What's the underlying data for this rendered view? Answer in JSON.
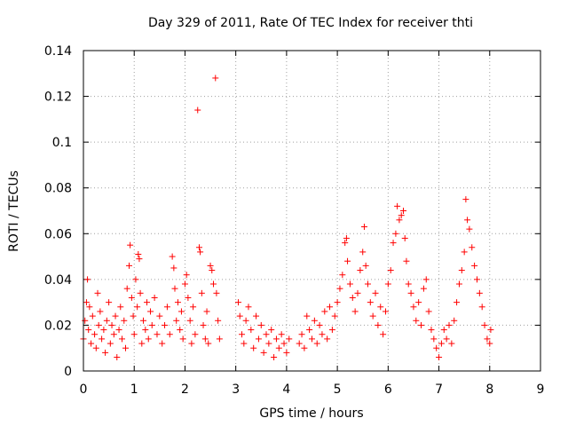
{
  "chart_data": {
    "type": "scatter",
    "title": "Day 329 of 2011, Rate Of TEC Index for receiver thti",
    "xlabel": "GPS time / hours",
    "ylabel": "ROTI / TECUs",
    "xlim": [
      0,
      9
    ],
    "ylim": [
      0,
      0.14
    ],
    "x_ticks": [
      "0",
      "1",
      "2",
      "3",
      "4",
      "5",
      "6",
      "7",
      "8",
      "9"
    ],
    "y_ticks": [
      "0",
      "0.02",
      "0.04",
      "0.06",
      "0.08",
      "0.1",
      "0.12",
      "0.14"
    ],
    "grid": true,
    "marker": "+",
    "point_color": "#ff0000",
    "series": [
      {
        "name": "ROTI",
        "points": [
          [
            0.0,
            0.014
          ],
          [
            0.03,
            0.022
          ],
          [
            0.06,
            0.03
          ],
          [
            0.08,
            0.04
          ],
          [
            0.1,
            0.018
          ],
          [
            0.12,
            0.028
          ],
          [
            0.15,
            0.012
          ],
          [
            0.18,
            0.024
          ],
          [
            0.22,
            0.016
          ],
          [
            0.25,
            0.01
          ],
          [
            0.28,
            0.034
          ],
          [
            0.3,
            0.02
          ],
          [
            0.33,
            0.026
          ],
          [
            0.36,
            0.014
          ],
          [
            0.4,
            0.018
          ],
          [
            0.43,
            0.008
          ],
          [
            0.46,
            0.022
          ],
          [
            0.5,
            0.03
          ],
          [
            0.53,
            0.012
          ],
          [
            0.56,
            0.02
          ],
          [
            0.6,
            0.016
          ],
          [
            0.63,
            0.024
          ],
          [
            0.66,
            0.006
          ],
          [
            0.7,
            0.018
          ],
          [
            0.73,
            0.028
          ],
          [
            0.76,
            0.014
          ],
          [
            0.8,
            0.022
          ],
          [
            0.83,
            0.01
          ],
          [
            0.86,
            0.036
          ],
          [
            0.9,
            0.046
          ],
          [
            0.92,
            0.055
          ],
          [
            0.95,
            0.032
          ],
          [
            0.98,
            0.024
          ],
          [
            1.0,
            0.016
          ],
          [
            1.03,
            0.04
          ],
          [
            1.06,
            0.028
          ],
          [
            1.08,
            0.051
          ],
          [
            1.1,
            0.049
          ],
          [
            1.12,
            0.034
          ],
          [
            1.15,
            0.012
          ],
          [
            1.18,
            0.022
          ],
          [
            1.22,
            0.018
          ],
          [
            1.25,
            0.03
          ],
          [
            1.28,
            0.014
          ],
          [
            1.32,
            0.026
          ],
          [
            1.35,
            0.02
          ],
          [
            1.4,
            0.032
          ],
          [
            1.45,
            0.016
          ],
          [
            1.5,
            0.024
          ],
          [
            1.55,
            0.012
          ],
          [
            1.6,
            0.02
          ],
          [
            1.65,
            0.028
          ],
          [
            1.7,
            0.016
          ],
          [
            1.75,
            0.05
          ],
          [
            1.78,
            0.045
          ],
          [
            1.8,
            0.036
          ],
          [
            1.83,
            0.022
          ],
          [
            1.86,
            0.03
          ],
          [
            1.9,
            0.018
          ],
          [
            1.93,
            0.026
          ],
          [
            1.96,
            0.014
          ],
          [
            2.0,
            0.038
          ],
          [
            2.03,
            0.042
          ],
          [
            2.06,
            0.032
          ],
          [
            2.1,
            0.022
          ],
          [
            2.13,
            0.012
          ],
          [
            2.16,
            0.028
          ],
          [
            2.2,
            0.016
          ],
          [
            2.25,
            0.114
          ],
          [
            2.28,
            0.054
          ],
          [
            2.3,
            0.052
          ],
          [
            2.33,
            0.034
          ],
          [
            2.36,
            0.02
          ],
          [
            2.4,
            0.014
          ],
          [
            2.43,
            0.026
          ],
          [
            2.46,
            0.012
          ],
          [
            2.5,
            0.046
          ],
          [
            2.53,
            0.044
          ],
          [
            2.56,
            0.038
          ],
          [
            2.6,
            0.128
          ],
          [
            2.62,
            0.034
          ],
          [
            2.65,
            0.022
          ],
          [
            2.68,
            0.014
          ],
          [
            3.05,
            0.03
          ],
          [
            3.08,
            0.024
          ],
          [
            3.12,
            0.016
          ],
          [
            3.16,
            0.012
          ],
          [
            3.2,
            0.022
          ],
          [
            3.25,
            0.028
          ],
          [
            3.3,
            0.018
          ],
          [
            3.35,
            0.01
          ],
          [
            3.4,
            0.024
          ],
          [
            3.45,
            0.014
          ],
          [
            3.5,
            0.02
          ],
          [
            3.55,
            0.008
          ],
          [
            3.6,
            0.016
          ],
          [
            3.65,
            0.012
          ],
          [
            3.7,
            0.018
          ],
          [
            3.75,
            0.006
          ],
          [
            3.8,
            0.014
          ],
          [
            3.85,
            0.01
          ],
          [
            3.9,
            0.016
          ],
          [
            3.95,
            0.012
          ],
          [
            4.0,
            0.008
          ],
          [
            4.05,
            0.014
          ],
          [
            4.25,
            0.012
          ],
          [
            4.3,
            0.016
          ],
          [
            4.35,
            0.01
          ],
          [
            4.4,
            0.024
          ],
          [
            4.45,
            0.018
          ],
          [
            4.5,
            0.014
          ],
          [
            4.55,
            0.022
          ],
          [
            4.6,
            0.012
          ],
          [
            4.65,
            0.02
          ],
          [
            4.7,
            0.016
          ],
          [
            4.75,
            0.026
          ],
          [
            4.8,
            0.014
          ],
          [
            4.85,
            0.028
          ],
          [
            4.9,
            0.018
          ],
          [
            4.95,
            0.024
          ],
          [
            5.0,
            0.03
          ],
          [
            5.05,
            0.036
          ],
          [
            5.1,
            0.042
          ],
          [
            5.15,
            0.056
          ],
          [
            5.18,
            0.058
          ],
          [
            5.2,
            0.048
          ],
          [
            5.25,
            0.038
          ],
          [
            5.3,
            0.032
          ],
          [
            5.35,
            0.026
          ],
          [
            5.4,
            0.034
          ],
          [
            5.45,
            0.044
          ],
          [
            5.5,
            0.052
          ],
          [
            5.53,
            0.063
          ],
          [
            5.56,
            0.046
          ],
          [
            5.6,
            0.038
          ],
          [
            5.65,
            0.03
          ],
          [
            5.7,
            0.024
          ],
          [
            5.75,
            0.034
          ],
          [
            5.8,
            0.02
          ],
          [
            5.85,
            0.028
          ],
          [
            5.9,
            0.016
          ],
          [
            5.95,
            0.026
          ],
          [
            6.0,
            0.038
          ],
          [
            6.05,
            0.044
          ],
          [
            6.1,
            0.056
          ],
          [
            6.15,
            0.06
          ],
          [
            6.18,
            0.072
          ],
          [
            6.22,
            0.066
          ],
          [
            6.26,
            0.068
          ],
          [
            6.3,
            0.07
          ],
          [
            6.33,
            0.058
          ],
          [
            6.36,
            0.048
          ],
          [
            6.4,
            0.038
          ],
          [
            6.45,
            0.034
          ],
          [
            6.5,
            0.028
          ],
          [
            6.55,
            0.022
          ],
          [
            6.6,
            0.03
          ],
          [
            6.65,
            0.02
          ],
          [
            6.7,
            0.036
          ],
          [
            6.75,
            0.04
          ],
          [
            6.8,
            0.026
          ],
          [
            6.85,
            0.018
          ],
          [
            6.9,
            0.014
          ],
          [
            6.95,
            0.01
          ],
          [
            7.0,
            0.006
          ],
          [
            7.05,
            0.012
          ],
          [
            7.1,
            0.018
          ],
          [
            7.15,
            0.014
          ],
          [
            7.2,
            0.02
          ],
          [
            7.25,
            0.012
          ],
          [
            7.3,
            0.022
          ],
          [
            7.35,
            0.03
          ],
          [
            7.4,
            0.038
          ],
          [
            7.45,
            0.044
          ],
          [
            7.5,
            0.052
          ],
          [
            7.53,
            0.075
          ],
          [
            7.56,
            0.066
          ],
          [
            7.6,
            0.062
          ],
          [
            7.65,
            0.054
          ],
          [
            7.7,
            0.046
          ],
          [
            7.75,
            0.04
          ],
          [
            7.8,
            0.034
          ],
          [
            7.85,
            0.028
          ],
          [
            7.9,
            0.02
          ],
          [
            7.95,
            0.014
          ],
          [
            8.0,
            0.012
          ],
          [
            8.02,
            0.018
          ]
        ]
      }
    ]
  }
}
